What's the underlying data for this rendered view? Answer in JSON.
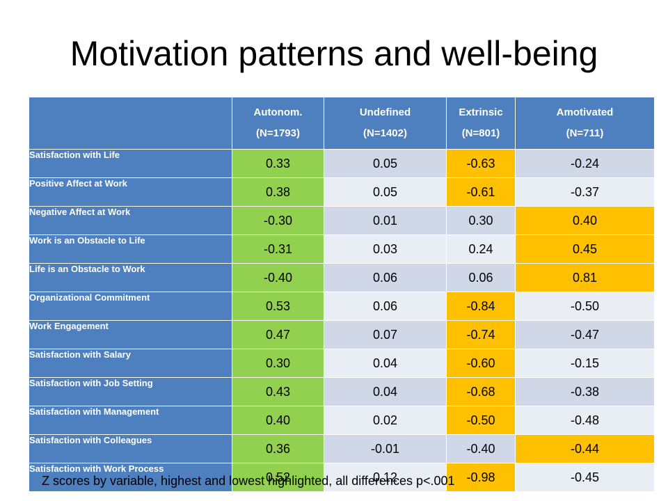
{
  "title": "Motivation patterns and well-being",
  "columns": [
    {
      "name": "Autonom.",
      "n": "(N=1793)"
    },
    {
      "name": "Undefined",
      "n": "(N=1402)"
    },
    {
      "name": "Extrinsic",
      "n": "(N=801)"
    },
    {
      "name": "Amotivated",
      "n": "(N=711)"
    }
  ],
  "rows": [
    {
      "label": "Satisfaction with Life",
      "values": [
        "0.33",
        "0.05",
        "-0.63",
        "-0.24"
      ],
      "highlight": [
        "high",
        "",
        "low",
        ""
      ]
    },
    {
      "label": "Positive Affect at Work",
      "values": [
        "0.38",
        "0.05",
        "-0.61",
        "-0.37"
      ],
      "highlight": [
        "high",
        "",
        "low",
        ""
      ]
    },
    {
      "label": "Negative Affect at Work",
      "values": [
        "-0.30",
        "0.01",
        "0.30",
        "0.40"
      ],
      "highlight": [
        "high",
        "",
        "",
        "low"
      ]
    },
    {
      "label": "Work is an Obstacle to Life",
      "values": [
        "-0.31",
        "0.03",
        "0.24",
        "0.45"
      ],
      "highlight": [
        "high",
        "",
        "",
        "low"
      ]
    },
    {
      "label": "Life is an Obstacle to Work",
      "values": [
        "-0.40",
        "0.06",
        "0.06",
        "0.81"
      ],
      "highlight": [
        "high",
        "",
        "",
        "low"
      ]
    },
    {
      "label": "Organizational Commitment",
      "values": [
        "0.53",
        "0.06",
        "-0.84",
        "-0.50"
      ],
      "highlight": [
        "high",
        "",
        "low",
        ""
      ]
    },
    {
      "label": "Work Engagement",
      "values": [
        "0.47",
        "0.07",
        "-0.74",
        "-0.47"
      ],
      "highlight": [
        "high",
        "",
        "low",
        ""
      ]
    },
    {
      "label": "Satisfaction with Salary",
      "values": [
        "0.30",
        "0.04",
        "-0.60",
        "-0.15"
      ],
      "highlight": [
        "high",
        "",
        "low",
        ""
      ]
    },
    {
      "label": "Satisfaction with Job Setting",
      "values": [
        "0.43",
        "0.04",
        "-0.68",
        "-0.38"
      ],
      "highlight": [
        "high",
        "",
        "low",
        ""
      ]
    },
    {
      "label": "Satisfaction with Management",
      "values": [
        "0.40",
        "0.02",
        "-0.50",
        "-0.48"
      ],
      "highlight": [
        "high",
        "",
        "low",
        ""
      ]
    },
    {
      "label": "Satisfaction with Colleagues",
      "values": [
        "0.36",
        "-0.01",
        "-0.40",
        "-0.44"
      ],
      "highlight": [
        "high",
        "",
        "",
        "low"
      ]
    },
    {
      "label": "Satisfaction with Work Process",
      "values": [
        "0.52",
        "0.12",
        "-0.98",
        "-0.45"
      ],
      "highlight": [
        "high",
        "",
        "low",
        ""
      ]
    }
  ],
  "footnote": "Z scores by variable, highest and lowest highlighted, all differences p<.001",
  "colors": {
    "header": "#4e7fbe",
    "highest": "#92d050",
    "lowest": "#ffc000",
    "band_dark": "#d0d8e8",
    "band_light": "#e9edf4"
  }
}
